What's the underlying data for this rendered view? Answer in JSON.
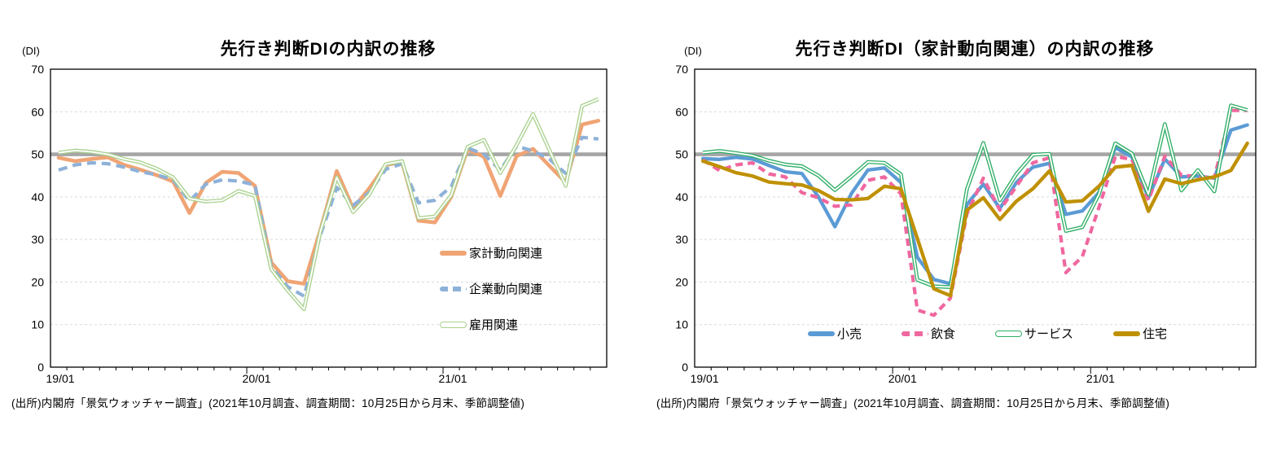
{
  "page": {
    "background": "#FFFFFF"
  },
  "colors": {
    "reference_line": "#A6A6A6",
    "gridline": "#D9D9D9",
    "axis": "#000000",
    "household_orange": "#F0A474",
    "corporate_blue": "#8EB1D8",
    "employment_green": "#A9D18E",
    "retail_blue": "#5B9BD5",
    "restaurant_pink": "#F0679F",
    "service_green": "#2EAE65",
    "housing_olive": "#BF9000"
  },
  "chart_data": [
    {
      "type": "line",
      "title": "先行き判断DIの内訳の推移",
      "unit_label": "(DI)",
      "source": "(出所)内閣府「景気ウォッチャー調査」(2021年10月調査、調査期間：10月25日から月末、季節調整値)",
      "legend_position": "inside-right",
      "axis": {
        "ylim": [
          0,
          70
        ],
        "yticks": [
          0,
          10,
          20,
          30,
          40,
          50,
          60,
          70
        ],
        "reference_line": 50,
        "grid": true,
        "x_major_ticks": [
          {
            "label": "19/01",
            "month_index": 0
          },
          {
            "label": "20/01",
            "month_index": 12
          },
          {
            "label": "21/01",
            "month_index": 24
          }
        ]
      },
      "months": [
        "19/01",
        "19/02",
        "19/03",
        "19/04",
        "19/05",
        "19/06",
        "19/07",
        "19/08",
        "19/09",
        "19/10",
        "19/11",
        "19/12",
        "20/01",
        "20/02",
        "20/03",
        "20/04",
        "20/05",
        "20/06",
        "20/07",
        "20/08",
        "20/09",
        "20/10",
        "20/11",
        "20/12",
        "21/01",
        "21/02",
        "21/03",
        "21/04",
        "21/05",
        "21/06",
        "21/07",
        "21/08",
        "21/09",
        "21/10"
      ],
      "series": [
        {
          "name": "家計動向関連",
          "style": "solid",
          "color": "#F0A474",
          "values": [
            49.2,
            48.4,
            48.9,
            49.3,
            47.5,
            46.4,
            45.1,
            43.6,
            36.2,
            43.3,
            45.9,
            45.6,
            42.6,
            24.6,
            20.2,
            19.6,
            32.2,
            46.1,
            37.3,
            42.1,
            47.5,
            48.1,
            34.4,
            34.0,
            40.0,
            51.2,
            49.4,
            40.2,
            49.6,
            51.3,
            47.3,
            43.4,
            57.0,
            57.9
          ]
        },
        {
          "name": "企業動向関連",
          "style": "dashed",
          "color": "#8EB1D8",
          "values": [
            46.3,
            47.5,
            48.0,
            47.8,
            47.0,
            45.9,
            45.2,
            44.0,
            39.0,
            43.0,
            44.0,
            43.7,
            42.8,
            23.7,
            18.9,
            16.7,
            31.0,
            42.2,
            38.0,
            41.1,
            46.5,
            47.8,
            38.6,
            39.2,
            42.4,
            51.5,
            50.0,
            46.3,
            51.9,
            50.8,
            48.9,
            45.5,
            54.0,
            53.6
          ]
        },
        {
          "name": "雇用関連",
          "style": "double",
          "color": "#A9D18E",
          "values": [
            50.4,
            50.9,
            50.6,
            50.0,
            48.9,
            48.1,
            46.6,
            44.6,
            39.6,
            38.9,
            39.2,
            41.4,
            40.2,
            23.0,
            18.0,
            13.6,
            31.8,
            44.6,
            36.4,
            40.6,
            47.7,
            48.4,
            35.0,
            35.4,
            40.4,
            51.8,
            53.4,
            45.6,
            52.2,
            59.5,
            51.0,
            42.6,
            61.4,
            63.0
          ]
        }
      ]
    },
    {
      "type": "line",
      "title": "先行き判断DI（家計動向関連）の内訳の推移",
      "unit_label": "(DI)",
      "source": "(出所)内閣府「景気ウォッチャー調査」(2021年10月調査、調査期間：10月25日から月末、季節調整値)",
      "legend_position": "bottom-inside",
      "axis": {
        "ylim": [
          0,
          70
        ],
        "yticks": [
          0,
          10,
          20,
          30,
          40,
          50,
          60,
          70
        ],
        "reference_line": 50,
        "grid": true,
        "x_major_ticks": [
          {
            "label": "19/01",
            "month_index": 0
          },
          {
            "label": "20/01",
            "month_index": 12
          },
          {
            "label": "21/01",
            "month_index": 24
          }
        ]
      },
      "months": [
        "19/01",
        "19/02",
        "19/03",
        "19/04",
        "19/05",
        "19/06",
        "19/07",
        "19/08",
        "19/09",
        "19/10",
        "19/11",
        "19/12",
        "20/01",
        "20/02",
        "20/03",
        "20/04",
        "20/05",
        "20/06",
        "20/07",
        "20/08",
        "20/09",
        "20/10",
        "20/11",
        "20/12",
        "21/01",
        "21/02",
        "21/03",
        "21/04",
        "21/05",
        "21/06",
        "21/07",
        "21/08",
        "21/09",
        "21/10"
      ],
      "series": [
        {
          "name": "小売",
          "style": "solid",
          "color": "#5B9BD5",
          "values": [
            49.0,
            48.8,
            49.3,
            48.9,
            47.4,
            45.9,
            45.5,
            40.0,
            33.0,
            40.8,
            46.3,
            46.8,
            43.4,
            25.8,
            20.6,
            19.6,
            38.2,
            43.0,
            37.3,
            43.4,
            47.0,
            47.9,
            35.9,
            36.7,
            41.0,
            51.6,
            49.4,
            39.8,
            48.9,
            44.7,
            44.9,
            44.4,
            55.7,
            56.9
          ]
        },
        {
          "name": "飲食",
          "style": "dashed",
          "color": "#F0679F",
          "values": [
            48.7,
            46.2,
            47.5,
            48.0,
            45.4,
            44.7,
            41.0,
            39.8,
            37.8,
            38.1,
            43.9,
            44.7,
            40.7,
            13.4,
            12.2,
            16.2,
            36.0,
            44.4,
            36.9,
            42.5,
            48.0,
            49.2,
            22.2,
            26.0,
            37.5,
            49.5,
            48.8,
            39.2,
            49.6,
            45.1,
            44.8,
            44.5,
            60.3,
            60.3
          ]
        },
        {
          "name": "サービス",
          "style": "double",
          "color": "#2EAE65",
          "values": [
            50.4,
            50.8,
            50.3,
            49.7,
            48.5,
            47.6,
            47.2,
            45.0,
            41.6,
            44.8,
            48.2,
            48.0,
            45.3,
            20.5,
            19.0,
            18.8,
            41.8,
            52.7,
            39.2,
            45.4,
            49.9,
            50.1,
            32.0,
            32.9,
            40.6,
            52.6,
            50.2,
            40.6,
            57.1,
            41.5,
            46.3,
            41.3,
            61.5,
            60.4
          ]
        },
        {
          "name": "住宅",
          "style": "solid",
          "color": "#BF9000",
          "values": [
            48.4,
            47.1,
            45.7,
            44.9,
            43.5,
            43.1,
            42.8,
            41.5,
            39.4,
            39.3,
            39.6,
            42.5,
            41.9,
            30.2,
            18.4,
            16.8,
            36.9,
            39.8,
            34.7,
            39.0,
            41.9,
            46.1,
            38.8,
            39.1,
            42.5,
            47.0,
            47.4,
            36.6,
            44.2,
            43.1,
            44.0,
            44.7,
            46.2,
            52.6
          ]
        }
      ]
    }
  ]
}
